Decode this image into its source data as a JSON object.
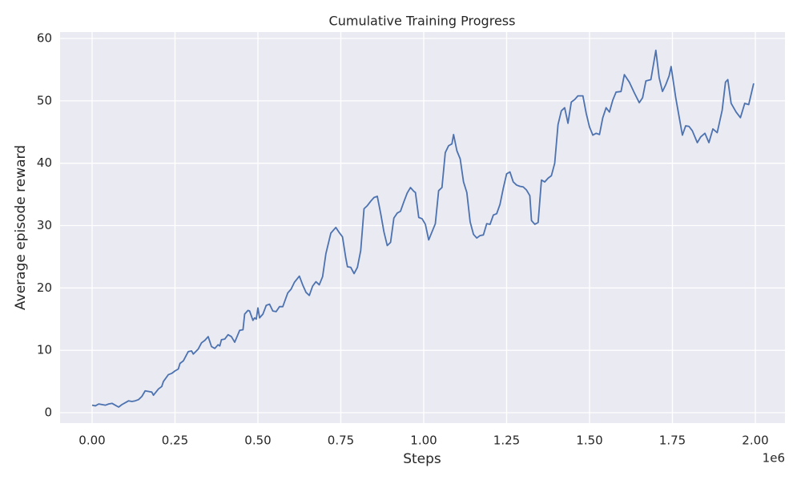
{
  "chart_data": {
    "type": "line",
    "title": "Cumulative Training Progress",
    "xlabel": "Steps",
    "ylabel": "Average episode reward",
    "x_offset_label": "1e6",
    "x": [
      0,
      10000,
      20000,
      30000,
      40000,
      50000,
      60000,
      70000,
      80000,
      90000,
      100000,
      110000,
      120000,
      130000,
      140000,
      150000,
      160000,
      170000,
      180000,
      185000,
      200000,
      210000,
      215000,
      230000,
      240000,
      250000,
      260000,
      265000,
      275000,
      290000,
      300000,
      305000,
      320000,
      330000,
      340000,
      350000,
      360000,
      370000,
      380000,
      385000,
      390000,
      400000,
      410000,
      420000,
      430000,
      445000,
      455000,
      460000,
      470000,
      475000,
      485000,
      490000,
      495000,
      500000,
      505000,
      515000,
      525000,
      535000,
      545000,
      555000,
      565000,
      575000,
      590000,
      600000,
      610000,
      625000,
      635000,
      645000,
      655000,
      665000,
      675000,
      685000,
      695000,
      705000,
      720000,
      735000,
      745000,
      755000,
      765000,
      770000,
      780000,
      790000,
      800000,
      810000,
      820000,
      830000,
      840000,
      850000,
      860000,
      870000,
      880000,
      890000,
      900000,
      910000,
      920000,
      930000,
      940000,
      950000,
      960000,
      970000,
      975000,
      985000,
      995000,
      1005000,
      1015000,
      1035000,
      1045000,
      1055000,
      1065000,
      1075000,
      1085000,
      1090000,
      1100000,
      1110000,
      1120000,
      1130000,
      1140000,
      1150000,
      1160000,
      1170000,
      1180000,
      1190000,
      1200000,
      1210000,
      1220000,
      1230000,
      1240000,
      1250000,
      1260000,
      1270000,
      1280000,
      1290000,
      1300000,
      1310000,
      1320000,
      1325000,
      1335000,
      1345000,
      1355000,
      1365000,
      1375000,
      1385000,
      1395000,
      1405000,
      1415000,
      1425000,
      1435000,
      1445000,
      1455000,
      1465000,
      1480000,
      1490000,
      1500000,
      1510000,
      1520000,
      1530000,
      1540000,
      1550000,
      1560000,
      1570000,
      1580000,
      1595000,
      1605000,
      1620000,
      1635000,
      1650000,
      1660000,
      1670000,
      1685000,
      1700000,
      1710000,
      1720000,
      1730000,
      1740000,
      1746000,
      1760000,
      1770000,
      1780000,
      1790000,
      1800000,
      1810000,
      1825000,
      1835000,
      1848000,
      1860000,
      1872000,
      1885000,
      1900000,
      1910000,
      1917000,
      1927000,
      1942000,
      1955000,
      1968000,
      1980000,
      1995000
    ],
    "series": [
      {
        "name": "Average episode reward",
        "color": "#4c72b0",
        "values": [
          1.2,
          1.1,
          1.4,
          1.3,
          1.2,
          1.4,
          1.5,
          1.2,
          0.9,
          1.3,
          1.6,
          1.9,
          1.8,
          1.9,
          2.1,
          2.6,
          3.5,
          3.4,
          3.3,
          2.8,
          3.8,
          4.2,
          5.0,
          6.1,
          6.3,
          6.7,
          7.0,
          7.9,
          8.3,
          9.8,
          9.9,
          9.4,
          10.2,
          11.2,
          11.6,
          12.2,
          10.6,
          10.3,
          10.9,
          10.7,
          11.7,
          11.8,
          12.5,
          12.2,
          11.3,
          13.2,
          13.3,
          15.8,
          16.4,
          16.3,
          14.8,
          15.2,
          15.0,
          16.8,
          15.2,
          15.8,
          17.2,
          17.4,
          16.3,
          16.2,
          17.0,
          17.0,
          19.2,
          19.8,
          20.9,
          21.9,
          20.5,
          19.3,
          18.8,
          20.3,
          21.0,
          20.5,
          21.8,
          25.5,
          28.8,
          29.7,
          28.9,
          28.2,
          24.8,
          23.4,
          23.3,
          22.3,
          23.3,
          26.0,
          32.7,
          33.2,
          33.9,
          34.5,
          34.7,
          32.0,
          29.0,
          26.8,
          27.3,
          31.2,
          32.0,
          32.3,
          33.8,
          35.2,
          36.1,
          35.5,
          35.3,
          31.3,
          31.1,
          30.2,
          27.7,
          30.3,
          35.6,
          36.1,
          41.7,
          42.8,
          43.1,
          44.6,
          42.0,
          40.7,
          37.0,
          35.3,
          30.6,
          28.6,
          28.0,
          28.4,
          28.5,
          30.3,
          30.2,
          31.7,
          31.9,
          33.4,
          36.0,
          38.3,
          38.6,
          37.0,
          36.5,
          36.3,
          36.2,
          35.7,
          34.8,
          30.8,
          30.2,
          30.5,
          37.3,
          37.0,
          37.6,
          38.0,
          40.0,
          46.2,
          48.4,
          48.9,
          46.4,
          49.8,
          50.2,
          50.8,
          50.8,
          48.0,
          45.8,
          44.5,
          44.8,
          44.6,
          47.3,
          48.9,
          48.2,
          50.1,
          51.4,
          51.5,
          54.2,
          53.0,
          51.3,
          49.7,
          50.5,
          53.2,
          53.4,
          58.1,
          53.7,
          51.5,
          52.6,
          54.0,
          55.5,
          50.5,
          47.5,
          44.5,
          46.0,
          45.9,
          45.2,
          43.3,
          44.2,
          44.8,
          43.3,
          45.5,
          44.9,
          48.5,
          53.0,
          53.4,
          49.6,
          48.2,
          47.3,
          49.6,
          49.4,
          52.8
        ]
      }
    ],
    "xlim": [
      -96600,
      2089400
    ],
    "ylim": [
      -1.67,
      61.03
    ],
    "xticks": [
      {
        "value": 0,
        "label": "0.00"
      },
      {
        "value": 250000,
        "label": "0.25"
      },
      {
        "value": 500000,
        "label": "0.50"
      },
      {
        "value": 750000,
        "label": "0.75"
      },
      {
        "value": 1000000,
        "label": "1.00"
      },
      {
        "value": 1250000,
        "label": "1.25"
      },
      {
        "value": 1500000,
        "label": "1.50"
      },
      {
        "value": 1750000,
        "label": "1.75"
      },
      {
        "value": 2000000,
        "label": "2.00"
      }
    ],
    "yticks": [
      0,
      10,
      20,
      30,
      40,
      50,
      60
    ],
    "grid": true
  }
}
